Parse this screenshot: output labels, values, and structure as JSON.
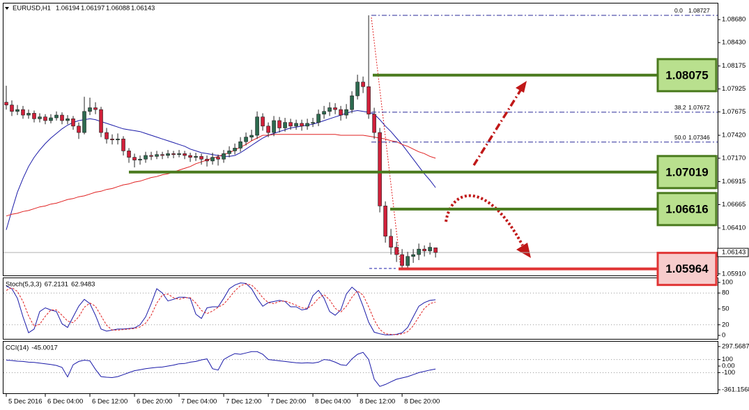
{
  "chart_data": [
    {
      "type": "candlestick",
      "symbol": "EURUSD,H1",
      "open": [
        1.0778,
        1.0775,
        1.0768,
        1.077,
        1.0764,
        1.0766,
        1.076,
        1.0762,
        1.0758,
        1.0761,
        1.0764,
        1.0758,
        1.076,
        1.0752,
        1.0745,
        1.0768,
        1.0772,
        1.077,
        1.0745,
        1.0738,
        1.0737,
        1.0738,
        1.0725,
        1.0718,
        1.0715,
        1.0716,
        1.072,
        1.0719,
        1.0721,
        1.072,
        1.0722,
        1.0721,
        1.0722,
        1.072,
        1.0718,
        1.0719,
        1.0716,
        1.0714,
        1.0718,
        1.0716,
        1.0722,
        1.0725,
        1.0728,
        1.0735,
        1.074,
        1.0742,
        1.0762,
        1.0752,
        1.0745,
        1.0758,
        1.075,
        1.0756,
        1.0752,
        1.0755,
        1.0752,
        1.0755,
        1.0756,
        1.0765,
        1.0768,
        1.0772,
        1.077,
        1.0764,
        1.077,
        1.0785,
        1.08,
        1.0795,
        1.0765,
        1.0745,
        1.0665,
        1.0632,
        1.062,
        1.0612,
        1.06,
        1.061,
        1.0612,
        1.0618,
        1.0616,
        1.06194
      ],
      "high": [
        1.0796,
        1.078,
        1.0775,
        1.0774,
        1.077,
        1.0769,
        1.0766,
        1.0765,
        1.0765,
        1.0768,
        1.0767,
        1.0764,
        1.0763,
        1.0756,
        1.0784,
        1.0783,
        1.0778,
        1.0773,
        1.075,
        1.0743,
        1.0744,
        1.0741,
        1.0728,
        1.0722,
        1.072,
        1.0724,
        1.0724,
        1.0725,
        1.0724,
        1.0726,
        1.0725,
        1.0726,
        1.0725,
        1.0723,
        1.0723,
        1.0722,
        1.072,
        1.0723,
        1.0721,
        1.0726,
        1.073,
        1.0733,
        1.074,
        1.0745,
        1.0748,
        1.0768,
        1.0766,
        1.0756,
        1.0763,
        1.0762,
        1.0761,
        1.076,
        1.0759,
        1.0759,
        1.076,
        1.0761,
        1.077,
        1.0774,
        1.0778,
        1.0777,
        1.0774,
        1.0776,
        1.079,
        1.0808,
        1.0806,
        1.08727,
        1.0772,
        1.075,
        1.067,
        1.064,
        1.0626,
        1.0618,
        1.0615,
        1.0618,
        1.0624,
        1.0622,
        1.0625,
        1.06197
      ],
      "low": [
        1.077,
        1.0763,
        1.0764,
        1.076,
        1.076,
        1.0756,
        1.0756,
        1.0754,
        1.0755,
        1.0758,
        1.0754,
        1.0754,
        1.0748,
        1.0738,
        1.0743,
        1.0764,
        1.0765,
        1.074,
        1.0733,
        1.0732,
        1.0732,
        1.072,
        1.0712,
        1.0707,
        1.071,
        1.0712,
        1.0715,
        1.0716,
        1.0716,
        1.0717,
        1.0717,
        1.0718,
        1.0716,
        1.0713,
        1.0714,
        1.071,
        1.0708,
        1.071,
        1.0709,
        1.0712,
        1.0718,
        1.0721,
        1.0724,
        1.0731,
        1.0736,
        1.0738,
        1.0747,
        1.074,
        1.0741,
        1.0745,
        1.0746,
        1.0748,
        1.0748,
        1.0747,
        1.0748,
        1.0751,
        1.0752,
        1.076,
        1.0763,
        1.0765,
        1.0758,
        1.076,
        1.0766,
        1.0781,
        1.0788,
        1.076,
        1.0738,
        1.0658,
        1.0625,
        1.0612,
        1.0604,
        1.05964,
        1.0597,
        1.0603,
        1.0606,
        1.061,
        1.0612,
        1.06088
      ],
      "close": [
        1.0775,
        1.0768,
        1.077,
        1.0764,
        1.0766,
        1.076,
        1.0762,
        1.0758,
        1.0761,
        1.0764,
        1.0758,
        1.076,
        1.0752,
        1.0745,
        1.0768,
        1.0772,
        1.077,
        1.0745,
        1.0738,
        1.0737,
        1.0738,
        1.0725,
        1.0718,
        1.0715,
        1.0716,
        1.072,
        1.0719,
        1.0721,
        1.072,
        1.0722,
        1.0721,
        1.0722,
        1.072,
        1.0718,
        1.0719,
        1.0716,
        1.0714,
        1.0718,
        1.0716,
        1.0722,
        1.0725,
        1.0728,
        1.0735,
        1.074,
        1.0742,
        1.0762,
        1.0752,
        1.0745,
        1.0758,
        1.075,
        1.0756,
        1.0752,
        1.0755,
        1.0752,
        1.0755,
        1.0756,
        1.0765,
        1.0768,
        1.0772,
        1.077,
        1.0764,
        1.077,
        1.0785,
        1.08,
        1.0795,
        1.0765,
        1.0745,
        1.0665,
        1.0632,
        1.062,
        1.0612,
        1.06,
        1.061,
        1.0612,
        1.0618,
        1.0616,
        1.062,
        1.06143
      ],
      "up_color": "#2d6a4f",
      "down_color": "#d0203a",
      "series": [
        {
          "color": "#1a1aa8",
          "values": [
            1.0639,
            1.066,
            1.068,
            1.0695,
            1.0708,
            1.0718,
            1.0726,
            1.0733,
            1.0739,
            1.0744,
            1.0749,
            1.0753,
            1.0756,
            1.0758,
            1.0759,
            1.076,
            1.0759,
            1.0757,
            1.0755,
            1.0753,
            1.0751,
            1.0749,
            1.0748,
            1.0747,
            1.0746,
            1.0744,
            1.0742,
            1.074,
            1.0738,
            1.0736,
            1.0734,
            1.0732,
            1.073,
            1.0727,
            1.0725,
            1.0723,
            1.0722,
            1.0721,
            1.072,
            1.0719,
            1.0719,
            1.072,
            1.0723,
            1.0727,
            1.0731,
            1.0735,
            1.0739,
            1.0742,
            1.0744,
            1.0746,
            1.0748,
            1.075,
            1.0751,
            1.0752,
            1.0753,
            1.0754,
            1.0756,
            1.0758,
            1.076,
            1.0762,
            1.0764,
            1.0766,
            1.0768,
            1.0769,
            1.0768,
            1.0767,
            1.0765,
            1.0759,
            1.0752,
            1.0746,
            1.0739,
            1.0732,
            1.0724,
            1.0716,
            1.0708,
            1.07,
            1.0693,
            1.0685
          ]
        },
        {
          "color": "#e02020",
          "values": [
            1.0654,
            1.0656,
            1.0657,
            1.0659,
            1.066,
            1.0662,
            1.0664,
            1.0665,
            1.0667,
            1.0668,
            1.067,
            1.0672,
            1.0673,
            1.0675,
            1.0676,
            1.0678,
            1.068,
            1.0681,
            1.0683,
            1.0684,
            1.0686,
            1.0688,
            1.0689,
            1.0691,
            1.0692,
            1.0694,
            1.0696,
            1.0697,
            1.0699,
            1.07,
            1.0702,
            1.0704,
            1.0706,
            1.0708,
            1.0711,
            1.0713,
            1.0715,
            1.0717,
            1.0719,
            1.0721,
            1.0723,
            1.0726,
            1.0729,
            1.0732,
            1.0736,
            1.0739,
            1.0742,
            1.0742,
            1.0743,
            1.0743,
            1.0743,
            1.0743,
            1.0743,
            1.0743,
            1.0743,
            1.0743,
            1.0743,
            1.0743,
            1.0743,
            1.0743,
            1.0742,
            1.0742,
            1.0742,
            1.0742,
            1.0742,
            1.0741,
            1.074,
            1.0739,
            1.0738,
            1.0736,
            1.0735,
            1.0732,
            1.073,
            1.0727,
            1.0724,
            1.0722,
            1.0719,
            1.0717
          ]
        }
      ],
      "xlim": [
        -0.5,
        127.6
      ],
      "xticks": [
        {
          "value": 0,
          "label": "5 Dec 2016"
        },
        {
          "value": 7,
          "label": "6 Dec 04:00"
        },
        {
          "value": 15,
          "label": "6 Dec 12:00"
        },
        {
          "value": 23,
          "label": "6 Dec 20:00"
        },
        {
          "value": 31,
          "label": "7 Dec 04:00"
        },
        {
          "value": 39,
          "label": "7 Dec 12:00"
        },
        {
          "value": 47,
          "label": "7 Dec 20:00"
        },
        {
          "value": 55,
          "label": "8 Dec 04:00"
        },
        {
          "value": 63,
          "label": "8 Dec 12:00"
        },
        {
          "value": 71,
          "label": "8 Dec 20:00"
        }
      ],
      "ylim": [
        1.05893,
        1.08856
      ],
      "yticks": [
        {
          "value": 1.0868,
          "label": "1.08680"
        },
        {
          "value": 1.0843,
          "label": "1.08430"
        },
        {
          "value": 1.08175,
          "label": "1.08175"
        },
        {
          "value": 1.07925,
          "label": "1.07925"
        },
        {
          "value": 1.07675,
          "label": "1.07675"
        },
        {
          "value": 1.0742,
          "label": "1.07420"
        },
        {
          "value": 1.0717,
          "label": "1.07170"
        },
        {
          "value": 1.06915,
          "label": "1.06915"
        },
        {
          "value": 1.06665,
          "label": "1.06665"
        },
        {
          "value": 1.0641,
          "label": "1.06410"
        },
        {
          "value": 1.0591,
          "label": "1.05910"
        }
      ],
      "levels": [
        {
          "value": 1.08075,
          "color": "#4a7a1e",
          "box_color": "#b9e08e"
        },
        {
          "value": 1.07019,
          "color": "#4a7a1e",
          "box_color": "#b9e08e"
        },
        {
          "value": 1.06616,
          "color": "#4a7a1e",
          "box_color": "#b9e08e"
        },
        {
          "value": 1.05964,
          "color": "#e03434",
          "box_color": "#f7cccc"
        }
      ],
      "fibonacci": [
        {
          "label": "0.0",
          "value": 1.08727
        },
        {
          "label": "38.2",
          "value": 1.07672
        },
        {
          "label": "50.0",
          "value": 1.07346
        }
      ]
    },
    {
      "type": "line",
      "title": "Stoch(5,3,3)",
      "series": [
        {
          "color": "#1a1aa8",
          "values": [
            93,
            88,
            70,
            35,
            5,
            12,
            45,
            52,
            48,
            45,
            22,
            15,
            35,
            55,
            68,
            60,
            38,
            12,
            8,
            10,
            12,
            12,
            13,
            14,
            20,
            35,
            60,
            88,
            80,
            65,
            68,
            72,
            72,
            70,
            40,
            32,
            52,
            54,
            54,
            70,
            88,
            95,
            99,
            98,
            88,
            70,
            55,
            62,
            64,
            66,
            64,
            54,
            54,
            48,
            50,
            75,
            85,
            70,
            45,
            38,
            48,
            78,
            91,
            82,
            55,
            25,
            6,
            3,
            1,
            1,
            2,
            5,
            15,
            35,
            55,
            62,
            66,
            67.2131
          ]
        },
        {
          "color": "#e02020",
          "dash": true,
          "values": [
            85,
            90,
            83,
            64,
            37,
            17,
            21,
            36,
            48,
            48,
            38,
            27,
            24,
            35,
            53,
            61,
            55,
            37,
            19,
            10,
            10,
            11,
            12,
            13,
            16,
            23,
            38,
            61,
            76,
            78,
            71,
            68,
            71,
            71,
            61,
            47,
            41,
            46,
            53,
            59,
            71,
            84,
            94,
            97,
            95,
            85,
            71,
            62,
            60,
            64,
            65,
            61,
            57,
            52,
            51,
            58,
            70,
            77,
            67,
            51,
            44,
            55,
            72,
            84,
            76,
            54,
            29,
            11,
            3,
            2,
            1,
            3,
            7,
            18,
            35,
            51,
            60,
            62.9483
          ]
        }
      ],
      "ylim": [
        -6.6,
        107.9
      ],
      "yticks": [
        100,
        80,
        50,
        20,
        0
      ],
      "levels": [
        80,
        20
      ]
    },
    {
      "type": "line",
      "title": "CCI(14)",
      "series": [
        {
          "color": "#1a1aa8",
          "values": [
            90,
            85,
            75,
            70,
            60,
            55,
            45,
            35,
            25,
            10,
            -20,
            -165,
            20,
            70,
            90,
            80,
            -50,
            -160,
            -170,
            -175,
            -160,
            -130,
            -100,
            -70,
            -55,
            -40,
            -30,
            -20,
            -15,
            0,
            15,
            35,
            40,
            60,
            70,
            95,
            110,
            -40,
            -60,
            100,
            150,
            190,
            180,
            200,
            220,
            220,
            180,
            100,
            90,
            80,
            70,
            60,
            50,
            45,
            50,
            45,
            60,
            100,
            90,
            60,
            20,
            10,
            110,
            180,
            210,
            100,
            -200,
            -310,
            -280,
            -240,
            -200,
            -180,
            -160,
            -130,
            -100,
            -80,
            -60,
            -45.0017
          ]
        }
      ],
      "ylim": [
        -414,
        372
      ],
      "yticks": [
        297.5687,
        100,
        {
          "value": 0,
          "label": "0.00"
        },
        -100,
        -361.1568
      ],
      "levels": [
        100,
        -100
      ]
    }
  ]
}
